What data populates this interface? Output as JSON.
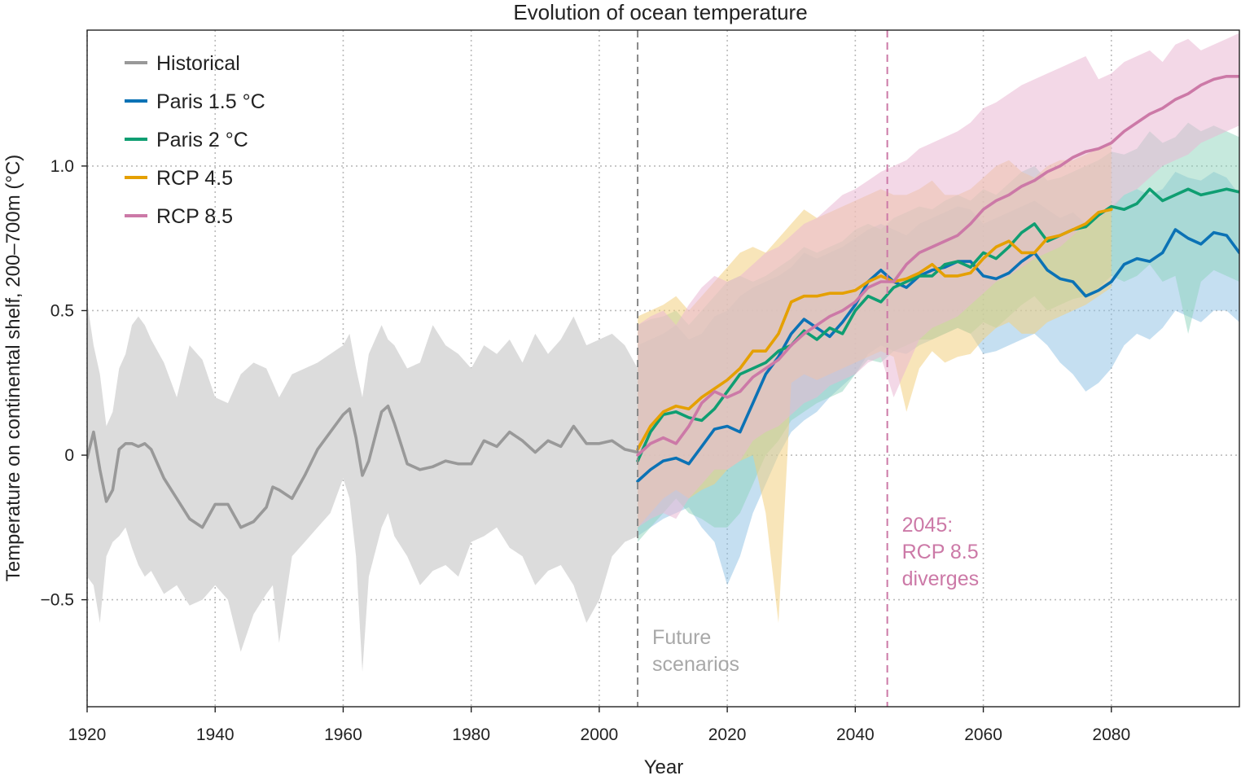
{
  "chart_data": {
    "type": "line",
    "title": "Evolution of ocean temperature",
    "xlabel": "Year",
    "ylabel": "Temperature on continental shelf, 200–700m (°C)",
    "xlim": [
      1920,
      2100
    ],
    "ylim": [
      -0.87,
      1.47
    ],
    "xticks": [
      1920,
      1940,
      1960,
      1980,
      2000,
      2020,
      2040,
      2060,
      2080
    ],
    "xtick_labels": [
      "1920",
      "1940",
      "1960",
      "1980",
      "2000",
      "2020",
      "2040",
      "2060",
      "2080"
    ],
    "yticks": [
      -0.5,
      0,
      0.5,
      1.0
    ],
    "ytick_labels": [
      "−0.5",
      "0",
      "0.5",
      "1.0"
    ],
    "grid": true,
    "legend_position": "top-left",
    "series": [
      {
        "name": "Historical",
        "color": "#999999",
        "band_color": "#dcdcdc",
        "band_opacity": 1,
        "x": [
          1920,
          1921,
          1922,
          1923,
          1924,
          1925,
          1926,
          1927,
          1928,
          1929,
          1930,
          1932,
          1934,
          1936,
          1938,
          1940,
          1942,
          1944,
          1946,
          1948,
          1949,
          1950,
          1952,
          1954,
          1956,
          1958,
          1960,
          1961,
          1962,
          1963,
          1964,
          1966,
          1967,
          1968,
          1970,
          1972,
          1974,
          1976,
          1978,
          1980,
          1982,
          1984,
          1986,
          1988,
          1990,
          1992,
          1994,
          1996,
          1998,
          2000,
          2002,
          2004,
          2006
        ],
        "y": [
          -0.01,
          0.08,
          -0.05,
          -0.16,
          -0.12,
          0.02,
          0.04,
          0.04,
          0.03,
          0.04,
          0.02,
          -0.08,
          -0.15,
          -0.22,
          -0.25,
          -0.17,
          -0.17,
          -0.25,
          -0.23,
          -0.18,
          -0.11,
          -0.12,
          -0.15,
          -0.07,
          0.02,
          0.08,
          0.14,
          0.16,
          0.06,
          -0.07,
          -0.02,
          0.15,
          0.17,
          0.11,
          -0.03,
          -0.05,
          -0.04,
          -0.02,
          -0.03,
          -0.03,
          0.05,
          0.03,
          0.08,
          0.05,
          0.01,
          0.05,
          0.03,
          0.1,
          0.04,
          0.04,
          0.05,
          0.02,
          0.01
        ],
        "upper": [
          0.53,
          0.38,
          0.28,
          0.1,
          0.15,
          0.3,
          0.35,
          0.45,
          0.48,
          0.45,
          0.4,
          0.32,
          0.2,
          0.38,
          0.33,
          0.2,
          0.18,
          0.28,
          0.32,
          0.3,
          0.25,
          0.2,
          0.28,
          0.3,
          0.32,
          0.35,
          0.38,
          0.42,
          0.3,
          0.2,
          0.35,
          0.45,
          0.4,
          0.38,
          0.3,
          0.32,
          0.45,
          0.38,
          0.35,
          0.3,
          0.38,
          0.35,
          0.4,
          0.32,
          0.42,
          0.35,
          0.4,
          0.48,
          0.38,
          0.4,
          0.42,
          0.38,
          0.3
        ],
        "lower": [
          -0.42,
          -0.45,
          -0.58,
          -0.35,
          -0.3,
          -0.28,
          -0.25,
          -0.32,
          -0.38,
          -0.42,
          -0.4,
          -0.48,
          -0.45,
          -0.52,
          -0.5,
          -0.45,
          -0.5,
          -0.68,
          -0.55,
          -0.48,
          -0.45,
          -0.65,
          -0.35,
          -0.3,
          -0.25,
          -0.2,
          -0.08,
          -0.15,
          -0.35,
          -0.75,
          -0.42,
          -0.25,
          -0.2,
          -0.28,
          -0.35,
          -0.45,
          -0.4,
          -0.38,
          -0.42,
          -0.3,
          -0.28,
          -0.25,
          -0.32,
          -0.35,
          -0.45,
          -0.4,
          -0.38,
          -0.45,
          -0.58,
          -0.5,
          -0.35,
          -0.3,
          -0.28
        ]
      },
      {
        "name": "Paris 1.5 °C",
        "color": "#0b72b5",
        "band_color": "#8bbfe3",
        "band_opacity": 0.5,
        "x": [
          2006,
          2008,
          2010,
          2012,
          2014,
          2016,
          2018,
          2020,
          2022,
          2024,
          2026,
          2028,
          2030,
          2032,
          2034,
          2036,
          2038,
          2040,
          2042,
          2044,
          2046,
          2048,
          2050,
          2052,
          2054,
          2056,
          2058,
          2060,
          2062,
          2064,
          2066,
          2068,
          2070,
          2072,
          2074,
          2076,
          2078,
          2080,
          2082,
          2084,
          2086,
          2088,
          2090,
          2092,
          2094,
          2096,
          2098,
          2100
        ],
        "y": [
          -0.09,
          -0.05,
          -0.02,
          -0.01,
          -0.03,
          0.03,
          0.09,
          0.1,
          0.08,
          0.18,
          0.28,
          0.34,
          0.42,
          0.47,
          0.44,
          0.41,
          0.46,
          0.52,
          0.6,
          0.64,
          0.6,
          0.58,
          0.62,
          0.64,
          0.65,
          0.67,
          0.67,
          0.62,
          0.61,
          0.63,
          0.67,
          0.7,
          0.64,
          0.61,
          0.6,
          0.55,
          0.57,
          0.6,
          0.66,
          0.68,
          0.67,
          0.7,
          0.78,
          0.75,
          0.73,
          0.77,
          0.76,
          0.7
        ],
        "upper": [
          0.38,
          0.4,
          0.42,
          0.45,
          0.4,
          0.42,
          0.48,
          0.5,
          0.55,
          0.58,
          0.6,
          0.62,
          0.65,
          0.7,
          0.68,
          0.7,
          0.72,
          0.75,
          0.78,
          0.8,
          0.78,
          0.76,
          0.8,
          0.82,
          0.84,
          0.86,
          0.85,
          0.8,
          0.82,
          0.84,
          0.86,
          0.88,
          0.85,
          0.82,
          0.84,
          0.8,
          0.82,
          0.86,
          0.9,
          0.92,
          0.9,
          0.92,
          0.98,
          0.96,
          0.95,
          0.98,
          0.96,
          0.9
        ],
        "lower": [
          -0.28,
          -0.25,
          -0.22,
          -0.2,
          -0.18,
          -0.25,
          -0.3,
          -0.45,
          -0.35,
          -0.2,
          -0.1,
          0.0,
          0.08,
          0.12,
          0.15,
          0.2,
          0.24,
          0.28,
          0.35,
          0.38,
          0.36,
          0.35,
          0.38,
          0.4,
          0.42,
          0.44,
          0.42,
          0.35,
          0.36,
          0.38,
          0.4,
          0.42,
          0.38,
          0.32,
          0.28,
          0.22,
          0.25,
          0.3,
          0.38,
          0.42,
          0.4,
          0.44,
          0.5,
          0.48,
          0.46,
          0.5,
          0.5,
          0.46
        ]
      },
      {
        "name": "Paris 2 °C",
        "color": "#0f9e72",
        "band_color": "#8dd4bb",
        "band_opacity": 0.5,
        "x": [
          2006,
          2008,
          2010,
          2012,
          2014,
          2016,
          2018,
          2020,
          2022,
          2024,
          2026,
          2028,
          2030,
          2032,
          2034,
          2036,
          2038,
          2040,
          2042,
          2044,
          2046,
          2048,
          2050,
          2052,
          2054,
          2056,
          2058,
          2060,
          2062,
          2064,
          2066,
          2068,
          2070,
          2072,
          2074,
          2076,
          2078,
          2080,
          2082,
          2084,
          2086,
          2088,
          2090,
          2092,
          2094,
          2096,
          2098,
          2100
        ],
        "y": [
          -0.02,
          0.08,
          0.14,
          0.15,
          0.13,
          0.12,
          0.16,
          0.22,
          0.28,
          0.3,
          0.32,
          0.36,
          0.38,
          0.43,
          0.4,
          0.44,
          0.42,
          0.5,
          0.55,
          0.53,
          0.58,
          0.6,
          0.62,
          0.62,
          0.66,
          0.67,
          0.65,
          0.7,
          0.68,
          0.72,
          0.77,
          0.8,
          0.74,
          0.76,
          0.78,
          0.79,
          0.83,
          0.86,
          0.85,
          0.87,
          0.92,
          0.88,
          0.9,
          0.92,
          0.9,
          0.91,
          0.92,
          0.91
        ],
        "upper": [
          0.45,
          0.47,
          0.48,
          0.5,
          0.45,
          0.5,
          0.55,
          0.6,
          0.62,
          0.6,
          0.62,
          0.65,
          0.68,
          0.72,
          0.7,
          0.72,
          0.74,
          0.78,
          0.8,
          0.78,
          0.82,
          0.84,
          0.86,
          0.85,
          0.88,
          0.9,
          0.88,
          0.92,
          0.9,
          0.94,
          0.98,
          1.0,
          0.95,
          0.96,
          0.98,
          1.0,
          1.02,
          1.05,
          1.04,
          1.06,
          1.12,
          1.08,
          1.1,
          1.15,
          1.12,
          1.14,
          1.12,
          1.1
        ],
        "lower": [
          -0.3,
          -0.25,
          -0.2,
          -0.15,
          -0.2,
          -0.22,
          -0.25,
          -0.25,
          -0.2,
          -0.1,
          0.0,
          0.05,
          0.12,
          0.15,
          0.18,
          0.2,
          0.22,
          0.28,
          0.33,
          0.32,
          0.36,
          0.38,
          0.4,
          0.4,
          0.42,
          0.44,
          0.42,
          0.46,
          0.44,
          0.48,
          0.52,
          0.55,
          0.5,
          0.52,
          0.54,
          0.55,
          0.58,
          0.62,
          0.6,
          0.62,
          0.66,
          0.6,
          0.62,
          0.42,
          0.6,
          0.64,
          0.62,
          0.6
        ]
      },
      {
        "name": "RCP 4.5",
        "color": "#e5a000",
        "band_color": "#f2cf80",
        "band_opacity": 0.55,
        "x": [
          2006,
          2008,
          2010,
          2012,
          2014,
          2016,
          2018,
          2020,
          2022,
          2024,
          2026,
          2028,
          2030,
          2032,
          2034,
          2036,
          2038,
          2040,
          2042,
          2044,
          2046,
          2048,
          2050,
          2052,
          2054,
          2056,
          2058,
          2060,
          2062,
          2064,
          2066,
          2068,
          2070,
          2072,
          2074,
          2076,
          2078,
          2080
        ],
        "y": [
          0.02,
          0.1,
          0.15,
          0.17,
          0.16,
          0.2,
          0.23,
          0.26,
          0.3,
          0.36,
          0.36,
          0.42,
          0.53,
          0.55,
          0.55,
          0.56,
          0.56,
          0.57,
          0.6,
          0.62,
          0.6,
          0.61,
          0.63,
          0.66,
          0.62,
          0.62,
          0.63,
          0.68,
          0.72,
          0.74,
          0.7,
          0.7,
          0.75,
          0.76,
          0.78,
          0.8,
          0.84,
          0.85
        ],
        "upper": [
          0.48,
          0.5,
          0.52,
          0.55,
          0.5,
          0.55,
          0.6,
          0.65,
          0.7,
          0.72,
          0.7,
          0.75,
          0.8,
          0.85,
          0.82,
          0.84,
          0.86,
          0.88,
          0.9,
          0.92,
          0.9,
          0.9,
          0.92,
          0.95,
          0.9,
          0.9,
          0.92,
          0.96,
          1.0,
          1.02,
          0.98,
          0.96,
          1.0,
          1.02,
          1.02,
          1.04,
          1.06,
          1.08
        ],
        "lower": [
          -0.25,
          -0.2,
          -0.15,
          -0.12,
          -0.15,
          -0.12,
          -0.1,
          -0.05,
          -0.02,
          0.0,
          -0.2,
          -0.58,
          0.25,
          0.28,
          0.26,
          0.28,
          0.3,
          0.32,
          0.34,
          0.36,
          0.34,
          0.15,
          0.3,
          0.36,
          0.32,
          0.34,
          0.35,
          0.4,
          0.44,
          0.46,
          0.42,
          0.42,
          0.46,
          0.48,
          0.5,
          0.52,
          0.55,
          0.58
        ]
      },
      {
        "name": "RCP 8.5",
        "color": "#cc79a7",
        "band_color": "#eab8d3",
        "band_opacity": 0.55,
        "x": [
          2006,
          2008,
          2010,
          2012,
          2014,
          2016,
          2018,
          2020,
          2022,
          2024,
          2026,
          2028,
          2030,
          2032,
          2034,
          2036,
          2038,
          2040,
          2042,
          2044,
          2046,
          2048,
          2050,
          2052,
          2054,
          2056,
          2058,
          2060,
          2062,
          2064,
          2066,
          2068,
          2070,
          2072,
          2074,
          2076,
          2078,
          2080,
          2082,
          2084,
          2086,
          2088,
          2090,
          2092,
          2094,
          2096,
          2098,
          2100
        ],
        "y": [
          0.0,
          0.04,
          0.06,
          0.04,
          0.1,
          0.18,
          0.22,
          0.2,
          0.22,
          0.27,
          0.3,
          0.33,
          0.38,
          0.42,
          0.45,
          0.48,
          0.5,
          0.53,
          0.58,
          0.6,
          0.6,
          0.66,
          0.7,
          0.72,
          0.74,
          0.76,
          0.8,
          0.85,
          0.88,
          0.9,
          0.93,
          0.95,
          0.98,
          1.0,
          1.03,
          1.05,
          1.06,
          1.08,
          1.12,
          1.15,
          1.18,
          1.2,
          1.23,
          1.25,
          1.28,
          1.3,
          1.31,
          1.31
        ],
        "upper": [
          0.45,
          0.48,
          0.5,
          0.45,
          0.52,
          0.58,
          0.62,
          0.6,
          0.62,
          0.66,
          0.7,
          0.72,
          0.76,
          0.8,
          0.82,
          0.86,
          0.9,
          0.92,
          0.95,
          0.98,
          1.0,
          1.02,
          1.06,
          1.08,
          1.1,
          1.12,
          1.15,
          1.2,
          1.22,
          1.25,
          1.28,
          1.3,
          1.32,
          1.34,
          1.36,
          1.38,
          1.3,
          1.32,
          1.36,
          1.38,
          1.4,
          1.36,
          1.42,
          1.44,
          1.4,
          1.42,
          1.44,
          1.46
        ],
        "lower": [
          -0.25,
          -0.22,
          -0.2,
          -0.22,
          -0.15,
          -0.1,
          -0.05,
          -0.05,
          -0.02,
          0.05,
          0.08,
          0.1,
          0.14,
          0.18,
          0.2,
          0.24,
          0.26,
          0.28,
          0.32,
          0.34,
          0.2,
          0.3,
          0.4,
          0.44,
          0.46,
          0.48,
          0.52,
          0.56,
          0.6,
          0.62,
          0.65,
          0.68,
          0.7,
          0.72,
          0.76,
          0.8,
          0.82,
          0.85,
          0.9,
          0.92,
          0.96,
          1.0,
          1.02,
          1.04,
          1.08,
          1.1,
          1.12,
          1.14
        ]
      }
    ],
    "vlines": [
      {
        "x": 2006,
        "color": "#888888",
        "label_lines": [
          "Future",
          "scenarios"
        ],
        "label_color": "#a8a8a8"
      },
      {
        "x": 2045,
        "color": "#cc79a7",
        "label_lines": [
          "2045:",
          "RCP 8.5",
          "diverges"
        ],
        "label_color": "#cc79a7"
      }
    ]
  }
}
